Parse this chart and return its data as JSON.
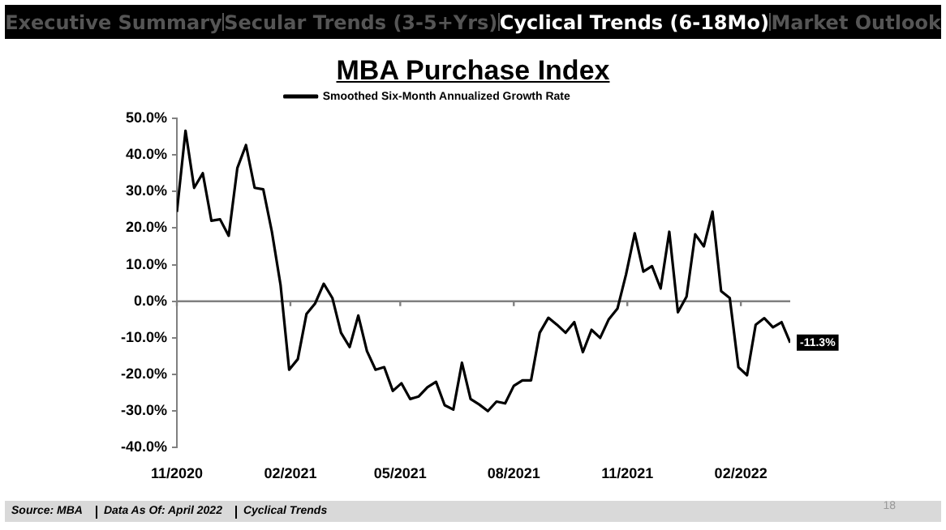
{
  "chart_data": {
    "type": "line",
    "title": "MBA Purchase Index",
    "annotations": [
      "Executive Summary",
      "Secular Trends (3-5+Yrs)",
      "Cyclical Trends (6-18Mo)",
      "Market Outlook",
      "Source: MBA",
      "Data As Of: April 2022",
      "Cyclical Trends",
      "18"
    ],
    "x": [
      "2020-11-01",
      "2020-11-08",
      "2020-11-15",
      "2020-11-22",
      "2020-11-29",
      "2020-12-06",
      "2020-12-13",
      "2020-12-20",
      "2020-12-27",
      "2021-01-03",
      "2021-01-10",
      "2021-01-17",
      "2021-01-24",
      "2021-01-31",
      "2021-02-07",
      "2021-02-14",
      "2021-02-21",
      "2021-02-28",
      "2021-03-07",
      "2021-03-14",
      "2021-03-21",
      "2021-03-28",
      "2021-04-04",
      "2021-04-11",
      "2021-04-18",
      "2021-04-25",
      "2021-05-02",
      "2021-05-09",
      "2021-05-16",
      "2021-05-23",
      "2021-05-30",
      "2021-06-06",
      "2021-06-13",
      "2021-06-20",
      "2021-06-27",
      "2021-07-04",
      "2021-07-11",
      "2021-07-18",
      "2021-07-25",
      "2021-08-01",
      "2021-08-08",
      "2021-08-15",
      "2021-08-22",
      "2021-08-29",
      "2021-09-05",
      "2021-09-12",
      "2021-09-19",
      "2021-09-26",
      "2021-10-03",
      "2021-10-10",
      "2021-10-17",
      "2021-10-24",
      "2021-10-31",
      "2021-11-07",
      "2021-11-14",
      "2021-11-21",
      "2021-11-28",
      "2021-12-05",
      "2021-12-12",
      "2021-12-19",
      "2021-12-26",
      "2022-01-02",
      "2022-01-09",
      "2022-01-16",
      "2022-01-23",
      "2022-01-30",
      "2022-02-06",
      "2022-02-13",
      "2022-02-20",
      "2022-02-27",
      "2022-03-06",
      "2022-03-13"
    ],
    "series": [
      {
        "name": "Smoothed Six-Month Annualized Growth Rate",
        "color": "#000000",
        "values": [
          24.4,
          46.6,
          31,
          35,
          22,
          22.4,
          17.9,
          36.4,
          42.7,
          31,
          30.6,
          19,
          4.5,
          -18.7,
          -15.8,
          -3.5,
          -0.6,
          4.8,
          0.9,
          -8.6,
          -12.5,
          -3.9,
          -13.6,
          -18.7,
          -18,
          -24.5,
          -22.4,
          -26.7,
          -26,
          -23.5,
          -22,
          -28.4,
          -29.6,
          -16.8,
          -26.7,
          -28.2,
          -30,
          -27.4,
          -27.9,
          -23.1,
          -21.6,
          -21.6,
          -8.6,
          -4.5,
          -6.4,
          -8.6,
          -5.7,
          -13.9,
          -7.8,
          -10,
          -4.9,
          -2,
          7.4,
          18.6,
          8.1,
          9.6,
          3.5,
          19,
          -3,
          1.3,
          18.3,
          15,
          24.5,
          2.8,
          0.9,
          -18,
          -20.2,
          -6.4,
          -4.6,
          -7.1,
          -5.7,
          -11.3
        ],
        "value_labels": [
          null,
          null,
          null,
          null,
          null,
          null,
          null,
          null,
          null,
          null,
          null,
          null,
          null,
          null,
          null,
          null,
          null,
          null,
          null,
          null,
          null,
          null,
          null,
          null,
          null,
          null,
          null,
          null,
          null,
          null,
          null,
          null,
          null,
          null,
          null,
          null,
          null,
          null,
          null,
          null,
          null,
          null,
          null,
          null,
          null,
          null,
          null,
          null,
          null,
          null,
          null,
          null,
          null,
          null,
          null,
          null,
          null,
          null,
          null,
          null,
          null,
          null,
          null,
          null,
          null,
          null,
          null,
          null,
          null,
          null,
          null,
          "-11.3%"
        ]
      }
    ],
    "xlim": [
      "2020-11-01",
      "2022-03-13"
    ],
    "xticks": [
      {
        "value": "2020-11-01",
        "label": "11/2020"
      },
      {
        "value": "2021-02-01",
        "label": "02/2021"
      },
      {
        "value": "2021-05-01",
        "label": "05/2021"
      },
      {
        "value": "2021-08-01",
        "label": "08/2021"
      },
      {
        "value": "2021-11-01",
        "label": "11/2021"
      },
      {
        "value": "2022-02-01",
        "label": "02/2022"
      }
    ],
    "ylim": [
      -40,
      50
    ],
    "yticks": [
      {
        "value": 50,
        "label": "50.0%"
      },
      {
        "value": 40,
        "label": "40.0%"
      },
      {
        "value": 30,
        "label": "30.0%"
      },
      {
        "value": 20,
        "label": "20.0%"
      },
      {
        "value": 10,
        "label": "10.0%"
      },
      {
        "value": 0,
        "label": "0.0%"
      },
      {
        "value": -10,
        "label": "-10.0%"
      },
      {
        "value": -20,
        "label": "-20.0%"
      },
      {
        "value": -30,
        "label": "-30.0%"
      },
      {
        "value": -40,
        "label": "-40.0%"
      }
    ],
    "ref_lines": [
      {
        "axis": "y",
        "value": 0,
        "color": "#808080"
      }
    ],
    "legend": "top",
    "grid": false,
    "marker": "none",
    "line_style": "solid"
  }
}
